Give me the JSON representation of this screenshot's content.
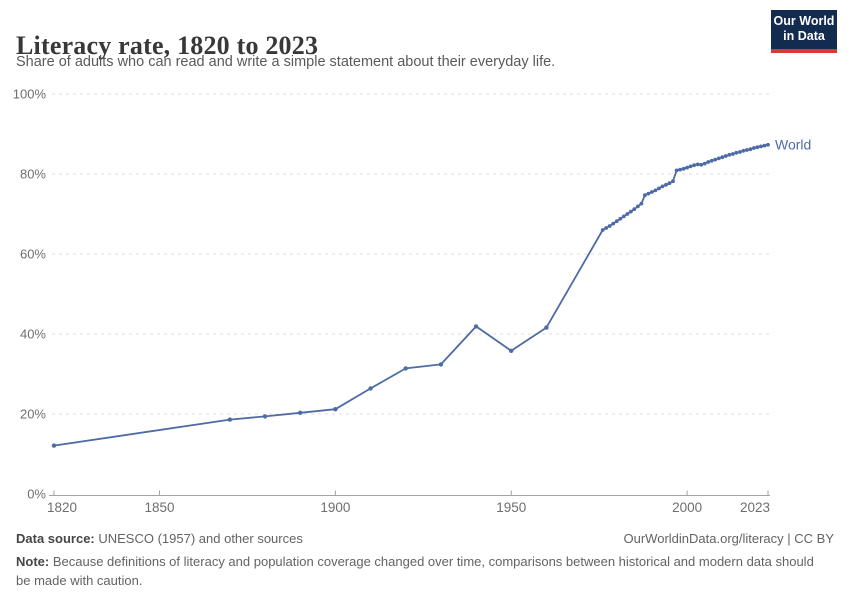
{
  "header": {
    "title": "Literacy rate, 1820 to 2023",
    "subtitle": "Share of adults who can read and write a simple statement about their everyday life.",
    "logo": {
      "line1": "Our World",
      "line2": "in Data"
    }
  },
  "footer": {
    "datasource_label": "Data source:",
    "datasource_value": " UNESCO (1957) and other sources",
    "link": "OurWorldinData.org/literacy | CC BY",
    "note_label": "Note:",
    "note_value": " Because definitions of literacy and population coverage changed over time, comparisons between historical and modern data should be made with caution."
  },
  "colors": {
    "line": "#4e6ba3",
    "entity_label": "#4e6ba3",
    "grid": "#dcdcdc",
    "axis": "#a3a3a3",
    "tick_text": "#6e6e6e",
    "title": "#383838",
    "subtitle": "#5a5a5a",
    "footer_text": "#636363",
    "logo_bg": "#132b4f",
    "logo_red": "#d93a35"
  },
  "chart_data": {
    "type": "line",
    "title": "Literacy rate, 1820 to 2023",
    "xlabel": "",
    "ylabel": "",
    "xlim": [
      1820,
      2023
    ],
    "ylim": [
      0,
      100
    ],
    "x_ticks": [
      1820,
      1850,
      1900,
      1950,
      2000,
      2023
    ],
    "y_ticks": [
      0,
      20,
      40,
      60,
      80,
      100
    ],
    "y_tick_suffix": "%",
    "grid": "horizontal-dashed",
    "legend_position": "line-end-label",
    "entity_label": "World",
    "series": [
      {
        "name": "World",
        "points": [
          [
            1820,
            12.1
          ],
          [
            1870,
            18.6
          ],
          [
            1880,
            19.4
          ],
          [
            1890,
            20.3
          ],
          [
            1900,
            21.2
          ],
          [
            1910,
            26.4
          ],
          [
            1920,
            31.4
          ],
          [
            1930,
            32.4
          ],
          [
            1940,
            41.9
          ],
          [
            1950,
            35.8
          ],
          [
            1960,
            41.6
          ],
          [
            1976,
            66.0
          ],
          [
            1977,
            66.5
          ],
          [
            1978,
            67.0
          ],
          [
            1979,
            67.6
          ],
          [
            1980,
            68.2
          ],
          [
            1981,
            68.8
          ],
          [
            1982,
            69.4
          ],
          [
            1983,
            70.0
          ],
          [
            1984,
            70.6
          ],
          [
            1985,
            71.2
          ],
          [
            1986,
            71.9
          ],
          [
            1987,
            72.6
          ],
          [
            1988,
            74.7
          ],
          [
            1989,
            75.1
          ],
          [
            1990,
            75.5
          ],
          [
            1991,
            75.9
          ],
          [
            1992,
            76.4
          ],
          [
            1993,
            76.9
          ],
          [
            1994,
            77.3
          ],
          [
            1995,
            77.7
          ],
          [
            1996,
            78.2
          ],
          [
            1997,
            80.9
          ],
          [
            1998,
            81.1
          ],
          [
            1999,
            81.3
          ],
          [
            2000,
            81.6
          ],
          [
            2001,
            81.9
          ],
          [
            2002,
            82.2
          ],
          [
            2003,
            82.4
          ],
          [
            2004,
            82.3
          ],
          [
            2005,
            82.6
          ],
          [
            2006,
            83.0
          ],
          [
            2007,
            83.3
          ],
          [
            2008,
            83.6
          ],
          [
            2009,
            83.9
          ],
          [
            2010,
            84.2
          ],
          [
            2011,
            84.5
          ],
          [
            2012,
            84.8
          ],
          [
            2013,
            85.0
          ],
          [
            2014,
            85.3
          ],
          [
            2015,
            85.5
          ],
          [
            2016,
            85.8
          ],
          [
            2017,
            86.0
          ],
          [
            2018,
            86.2
          ],
          [
            2019,
            86.5
          ],
          [
            2020,
            86.7
          ],
          [
            2021,
            86.9
          ],
          [
            2022,
            87.1
          ],
          [
            2023,
            87.3
          ]
        ]
      }
    ]
  }
}
